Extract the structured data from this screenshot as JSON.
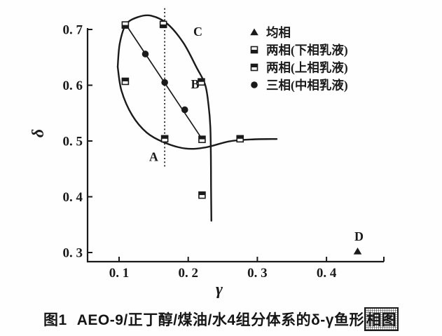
{
  "caption": {
    "label": "图1",
    "body": "AEO-9/正丁醇/煤油/水4组分体系的δ-γ鱼形",
    "suffix": "相图"
  },
  "colors": {
    "ink": "#1a1a1a",
    "background": "#ffffff"
  },
  "chart_data": {
    "type": "scatter",
    "title": "图1 AEO-9/正丁醇/煤油/水4组分体系的δ-γ鱼形相图",
    "xlabel": "γ",
    "ylabel": "δ",
    "xlim": [
      0.054,
      0.483
    ],
    "ylim": [
      0.283,
      0.703
    ],
    "grid": false,
    "legend_position": "upper-right-inside",
    "x_ticks": {
      "values": [
        0.1,
        0.2,
        0.3,
        0.4
      ],
      "labels": [
        "0. 1",
        "0. 2",
        "0. 3",
        "0. 4"
      ]
    },
    "y_ticks": {
      "values": [
        0.3,
        0.4,
        0.5,
        0.6,
        0.7
      ],
      "labels": [
        "0. 3",
        "0. 4",
        "0. 5",
        "0. 6",
        "0. 7"
      ]
    },
    "series": [
      {
        "name": "均相",
        "marker": "filled-triangle",
        "points": [
          [
            0.445,
            0.302
          ]
        ]
      },
      {
        "name": "两相(下相乳液)",
        "marker": "square-bottom-half-filled",
        "points": [
          [
            0.109,
            0.708
          ],
          [
            0.164,
            0.709
          ]
        ]
      },
      {
        "name": "两相(上相乳液)",
        "marker": "square-top-half-filled",
        "points": [
          [
            0.109,
            0.607
          ],
          [
            0.219,
            0.606
          ],
          [
            0.166,
            0.504
          ],
          [
            0.22,
            0.503
          ],
          [
            0.275,
            0.504
          ],
          [
            0.22,
            0.403
          ]
        ]
      },
      {
        "name": "三相(中相乳液)",
        "marker": "filled-circle",
        "points": [
          [
            0.138,
            0.656
          ],
          [
            0.166,
            0.605
          ],
          [
            0.195,
            0.556
          ]
        ]
      }
    ],
    "region_labels": [
      {
        "text": "A",
        "x": 0.15,
        "y": 0.472
      },
      {
        "text": "B",
        "x": 0.21,
        "y": 0.602
      },
      {
        "text": "C",
        "x": 0.214,
        "y": 0.696
      },
      {
        "text": "D",
        "x": 0.447,
        "y": 0.329
      }
    ],
    "curves": {
      "fish_body_upper": [
        [
          0.098,
          0.633
        ],
        [
          0.101,
          0.675
        ],
        [
          0.11,
          0.709
        ],
        [
          0.128,
          0.7225
        ],
        [
          0.147,
          0.7245
        ],
        [
          0.17,
          0.71
        ],
        [
          0.193,
          0.676
        ],
        [
          0.212,
          0.632
        ],
        [
          0.2245,
          0.601
        ],
        [
          0.2295,
          0.563
        ],
        [
          0.232,
          0.525
        ],
        [
          0.2328,
          0.47
        ],
        [
          0.233,
          0.42
        ],
        [
          0.2335,
          0.357
        ]
      ],
      "fish_body_lower_and_tail": [
        [
          0.098,
          0.633
        ],
        [
          0.1035,
          0.59
        ],
        [
          0.119,
          0.546
        ],
        [
          0.14,
          0.515
        ],
        [
          0.165,
          0.4975
        ],
        [
          0.196,
          0.4865
        ],
        [
          0.225,
          0.4885
        ],
        [
          0.26,
          0.4995
        ],
        [
          0.295,
          0.503
        ],
        [
          0.328,
          0.5035
        ]
      ],
      "tie_line": [
        [
          0.107,
          0.714
        ],
        [
          0.223,
          0.498
        ]
      ],
      "gamma_scan_line": {
        "x": 0.166,
        "delta_top": 0.738,
        "delta_bottom": 0.451
      }
    }
  }
}
